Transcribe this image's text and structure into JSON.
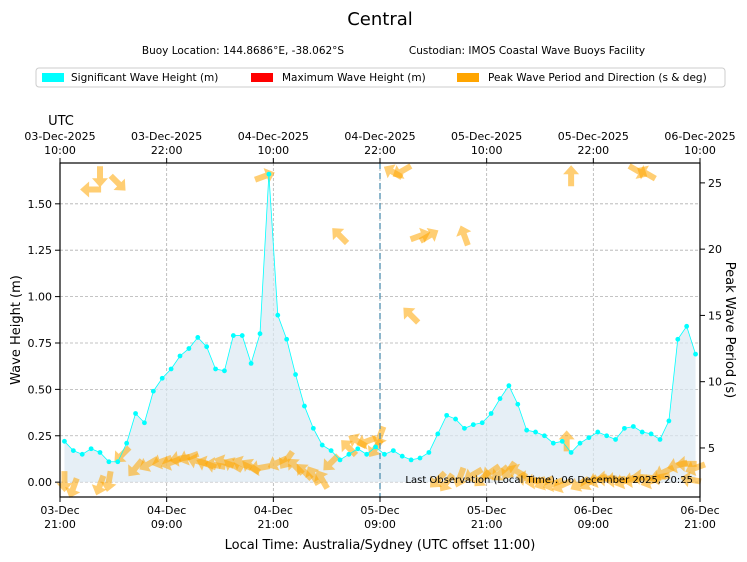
{
  "chart_data": {
    "type": "line",
    "title": "Central",
    "subtitle_location": "Buoy Location: 144.8686°E, -38.062°S",
    "subtitle_custodian": "Custodian: IMOS Coastal Wave Buoys Facility",
    "legend": [
      {
        "label": "Significant Wave Height (m)",
        "color": "#00ffff"
      },
      {
        "label": "Maximum Wave Height (m)",
        "color": "#ff0000"
      },
      {
        "label": "Peak Wave Period and Direction (s & deg)",
        "color": "#ffa500"
      }
    ],
    "xlabel": "Local Time: Australia/Sydney (UTC offset 11:00)",
    "ylabel_left": "Wave Height (m)",
    "ylabel_right": "Peak Wave Period (s)",
    "utc_label": "UTC",
    "x_range_hours": [
      0,
      72
    ],
    "ylim_left": [
      -0.08,
      1.72
    ],
    "yticks_left": [
      "0.00",
      "0.25",
      "0.50",
      "0.75",
      "1.00",
      "1.25",
      "1.50"
    ],
    "ylim_right": [
      1.3,
      26.5
    ],
    "yticks_right": [
      "5",
      "10",
      "15",
      "20",
      "25"
    ],
    "x_ticks_local": [
      {
        "date": "03-Dec",
        "time": "21:00"
      },
      {
        "date": "04-Dec",
        "time": "09:00"
      },
      {
        "date": "04-Dec",
        "time": "21:00"
      },
      {
        "date": "05-Dec",
        "time": "09:00"
      },
      {
        "date": "05-Dec",
        "time": "21:00"
      },
      {
        "date": "06-Dec",
        "time": "09:00"
      },
      {
        "date": "06-Dec",
        "time": "21:00"
      }
    ],
    "x_ticks_utc": [
      {
        "date": "03-Dec-2025",
        "time": "10:00"
      },
      {
        "date": "03-Dec-2025",
        "time": "22:00"
      },
      {
        "date": "04-Dec-2025",
        "time": "10:00"
      },
      {
        "date": "04-Dec-2025",
        "time": "22:00"
      },
      {
        "date": "05-Dec-2025",
        "time": "10:00"
      },
      {
        "date": "05-Dec-2025",
        "time": "22:00"
      },
      {
        "date": "06-Dec-2025",
        "time": "10:00"
      }
    ],
    "vline_hour": 36,
    "last_observation": "Last Observation (Local Time): 06 December 2025, 20:25",
    "significant_wave_height": {
      "hours": [
        0.5,
        1.5,
        2.5,
        3.5,
        4.5,
        5.5,
        6.5,
        7.5,
        8.5,
        9.5,
        10.5,
        11.5,
        12.5,
        13.5,
        14.5,
        15.5,
        16.5,
        17.5,
        18.5,
        19.5,
        20.5,
        21.5,
        22.5,
        23.5,
        24.5,
        25.5,
        26.5,
        27.5,
        28.5,
        29.5,
        30.5,
        31.5,
        32.5,
        33.5,
        34.5,
        35.5,
        36.5,
        37.5,
        38.5,
        39.5,
        40.5,
        41.5,
        42.5,
        43.5,
        44.5,
        45.5,
        46.5,
        47.5,
        48.5,
        49.5,
        50.5,
        51.5,
        52.5,
        53.5,
        54.5,
        55.5,
        56.5,
        57.5,
        58.5,
        59.5,
        60.5,
        61.5,
        62.5,
        63.5,
        64.5,
        65.5,
        66.5,
        67.5,
        68.5,
        69.5,
        70.5,
        71.5
      ],
      "values": [
        0.22,
        0.17,
        0.15,
        0.18,
        0.16,
        0.11,
        0.11,
        0.21,
        0.37,
        0.32,
        0.49,
        0.56,
        0.61,
        0.68,
        0.72,
        0.78,
        0.73,
        0.61,
        0.6,
        0.79,
        0.79,
        0.64,
        0.8,
        1.66,
        0.9,
        0.77,
        0.58,
        0.41,
        0.29,
        0.2,
        0.17,
        0.12,
        0.15,
        0.18,
        0.15,
        0.19,
        0.15,
        0.17,
        0.14,
        0.12,
        0.13,
        0.16,
        0.26,
        0.36,
        0.34,
        0.29,
        0.31,
        0.32,
        0.37,
        0.45,
        0.52,
        0.42,
        0.28,
        0.27,
        0.25,
        0.21,
        0.22,
        0.16,
        0.21,
        0.24,
        0.27,
        0.25,
        0.23,
        0.29,
        0.3,
        0.27,
        0.26,
        0.23,
        0.33,
        0.77,
        0.84,
        0.69
      ]
    },
    "peak_period_direction": [
      {
        "hour": 0.5,
        "period": 2.5,
        "dir": 180
      },
      {
        "hour": 1.5,
        "period": 2.0,
        "dir": 200
      },
      {
        "hour": 3.5,
        "period": 24.5,
        "dir": 270
      },
      {
        "hour": 4.5,
        "period": 25.5,
        "dir": 180
      },
      {
        "hour": 6.5,
        "period": 25.0,
        "dir": 135
      },
      {
        "hour": 4.5,
        "period": 2.2,
        "dir": 200
      },
      {
        "hour": 5.5,
        "period": 2.5,
        "dir": 190
      },
      {
        "hour": 7.0,
        "period": 4.5,
        "dir": 225
      },
      {
        "hour": 8.5,
        "period": 3.5,
        "dir": 220
      },
      {
        "hour": 10.0,
        "period": 3.8,
        "dir": 240
      },
      {
        "hour": 11.5,
        "period": 4.0,
        "dir": 250
      },
      {
        "hour": 12.5,
        "period": 3.9,
        "dir": 250
      },
      {
        "hour": 13.5,
        "period": 4.2,
        "dir": 260
      },
      {
        "hour": 14.5,
        "period": 4.3,
        "dir": 250
      },
      {
        "hour": 15.5,
        "period": 4.0,
        "dir": 285
      },
      {
        "hour": 16.5,
        "period": 3.8,
        "dir": 290
      },
      {
        "hour": 17.5,
        "period": 3.7,
        "dir": 280
      },
      {
        "hour": 18.5,
        "period": 3.9,
        "dir": 290
      },
      {
        "hour": 19.5,
        "period": 3.7,
        "dir": 300
      },
      {
        "hour": 20.5,
        "period": 3.8,
        "dir": 295
      },
      {
        "hour": 21.5,
        "period": 3.6,
        "dir": 305
      },
      {
        "hour": 22.5,
        "period": 3.5,
        "dir": 260
      },
      {
        "hour": 23.0,
        "period": 25.5,
        "dir": 70
      },
      {
        "hour": 24.5,
        "period": 3.9,
        "dir": 245
      },
      {
        "hour": 25.5,
        "period": 4.1,
        "dir": 215
      },
      {
        "hour": 26.5,
        "period": 3.6,
        "dir": 315
      },
      {
        "hour": 27.5,
        "period": 3.2,
        "dir": 315
      },
      {
        "hour": 28.5,
        "period": 2.9,
        "dir": 330
      },
      {
        "hour": 29.5,
        "period": 2.6,
        "dir": 330
      },
      {
        "hour": 30.5,
        "period": 3.9,
        "dir": 225
      },
      {
        "hour": 31.5,
        "period": 21.0,
        "dir": 315
      },
      {
        "hour": 32.5,
        "period": 5.0,
        "dir": 315
      },
      {
        "hour": 33.5,
        "period": 5.5,
        "dir": 300
      },
      {
        "hour": 34.5,
        "period": 5.5,
        "dir": 250
      },
      {
        "hour": 35.5,
        "period": 5.0,
        "dir": 215
      },
      {
        "hour": 36.0,
        "period": 5.9,
        "dir": 200
      },
      {
        "hour": 37.5,
        "period": 25.8,
        "dir": 300
      },
      {
        "hour": 38.5,
        "period": 25.9,
        "dir": 240
      },
      {
        "hour": 39.5,
        "period": 15.0,
        "dir": 315
      },
      {
        "hour": 40.5,
        "period": 21.0,
        "dir": 70
      },
      {
        "hour": 41.5,
        "period": 21.0,
        "dir": 60
      },
      {
        "hour": 45.5,
        "period": 21.0,
        "dir": 340
      },
      {
        "hour": 42.5,
        "period": 2.6,
        "dir": 225
      },
      {
        "hour": 43.5,
        "period": 2.4,
        "dir": 215
      },
      {
        "hour": 45.0,
        "period": 2.8,
        "dir": 200
      },
      {
        "hour": 46.5,
        "period": 3.0,
        "dir": 240
      },
      {
        "hour": 47.5,
        "period": 2.7,
        "dir": 225
      },
      {
        "hour": 48.5,
        "period": 3.2,
        "dir": 235
      },
      {
        "hour": 49.5,
        "period": 3.1,
        "dir": 230
      },
      {
        "hour": 50.5,
        "period": 3.3,
        "dir": 215
      },
      {
        "hour": 51.5,
        "period": 3.2,
        "dir": 300
      },
      {
        "hour": 52.5,
        "period": 2.7,
        "dir": 280
      },
      {
        "hour": 53.5,
        "period": 2.5,
        "dir": 260
      },
      {
        "hour": 54.5,
        "period": 2.4,
        "dir": 245
      },
      {
        "hour": 55.5,
        "period": 2.3,
        "dir": 250
      },
      {
        "hour": 56.5,
        "period": 2.2,
        "dir": 245
      },
      {
        "hour": 57.0,
        "period": 5.5,
        "dir": 0
      },
      {
        "hour": 57.5,
        "period": 25.5,
        "dir": 0
      },
      {
        "hour": 58.5,
        "period": 2.3,
        "dir": 240
      },
      {
        "hour": 59.5,
        "period": 2.4,
        "dir": 235
      },
      {
        "hour": 60.5,
        "period": 2.6,
        "dir": 250
      },
      {
        "hour": 61.5,
        "period": 2.7,
        "dir": 270
      },
      {
        "hour": 62.5,
        "period": 2.6,
        "dir": 265
      },
      {
        "hour": 63.5,
        "period": 2.5,
        "dir": 250
      },
      {
        "hour": 64.5,
        "period": 2.6,
        "dir": 260
      },
      {
        "hour": 65.5,
        "period": 2.8,
        "dir": 275
      },
      {
        "hour": 66.5,
        "period": 2.5,
        "dir": 250
      },
      {
        "hour": 67.5,
        "period": 2.8,
        "dir": 260
      },
      {
        "hour": 68.0,
        "period": 3.2,
        "dir": 245
      },
      {
        "hour": 69.5,
        "period": 3.7,
        "dir": 255
      },
      {
        "hour": 70.5,
        "period": 3.8,
        "dir": 270
      },
      {
        "hour": 71.5,
        "period": 3.5,
        "dir": 250
      },
      {
        "hour": 71.0,
        "period": 2.6,
        "dir": 280
      },
      {
        "hour": 66.0,
        "period": 25.7,
        "dir": 300
      },
      {
        "hour": 65.0,
        "period": 25.9,
        "dir": 120
      }
    ]
  }
}
